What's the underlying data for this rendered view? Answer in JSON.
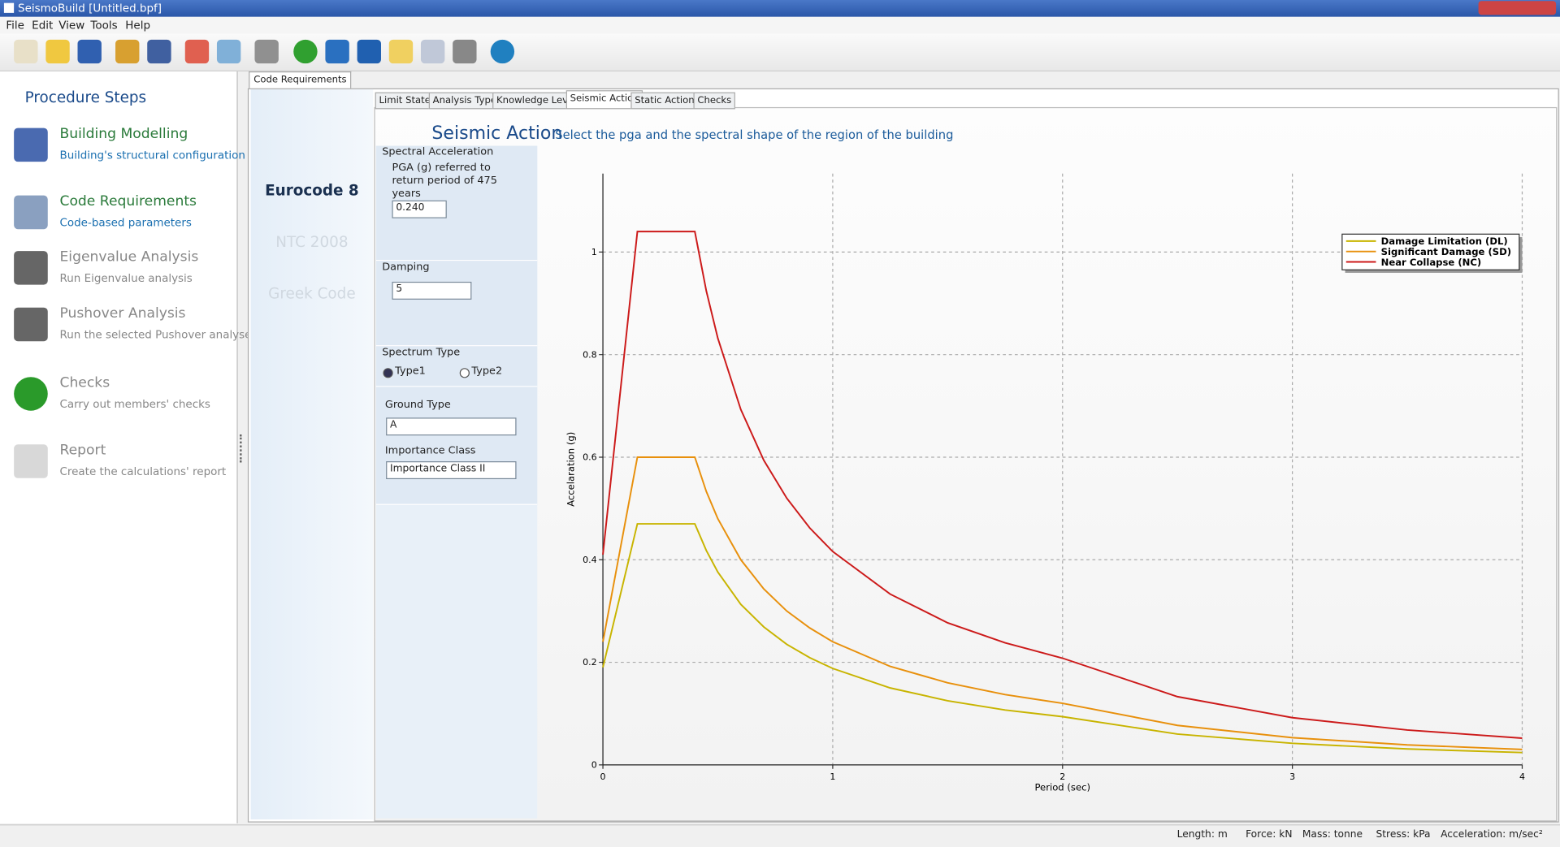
{
  "window": {
    "title": "SeismoBuild  [Untitled.bpf]"
  },
  "menu": [
    "File",
    "Edit",
    "View",
    "Tools",
    "Help"
  ],
  "sidebar": {
    "title": "Procedure Steps",
    "steps": [
      {
        "label": "Building Modelling",
        "description": "Building's structural configuration"
      },
      {
        "label": "Code Requirements",
        "description": "Code-based parameters"
      },
      {
        "label": "Eigenvalue Analysis",
        "description": "Run Eigenvalue analysis"
      },
      {
        "label": "Pushover Analysis",
        "description": "Run the selected Pushover analyses"
      },
      {
        "label": "Checks",
        "description": "Carry out members' checks"
      },
      {
        "label": "Report",
        "description": "Create the calculations' report"
      }
    ]
  },
  "main_tab": "Code Requirements",
  "codes": [
    "Eurocode 8",
    "NTC 2008",
    "Greek Code"
  ],
  "sub_tabs": [
    "Limit States",
    "Analysis Type",
    "Knowledge Level",
    "Seismic Action",
    "Static Actions",
    "Checks"
  ],
  "panel": {
    "title": "Seismic Action",
    "subtitle": "Select the pga and the spectral shape of the region of the building",
    "spectral_acceleration": {
      "label": "Spectral Acceleration",
      "text": "PGA (g) referred to return period of 475 years",
      "value": "0.240"
    },
    "damping": {
      "label": "Damping",
      "value": "5"
    },
    "spectrum_type": {
      "label": "Spectrum Type",
      "options": [
        "Type1",
        "Type2"
      ]
    },
    "ground_type": {
      "label": "Ground Type",
      "value": "A"
    },
    "importance_class": {
      "label": "Importance Class",
      "value": "Importance Class II"
    }
  },
  "chart_data": {
    "type": "line",
    "x_label": "Period (sec)",
    "y_label": "Accelaration (g)",
    "x": [
      0,
      0.15,
      0.4,
      0.45,
      0.5,
      0.6,
      0.7,
      0.8,
      0.9,
      1,
      1.25,
      1.5,
      1.75,
      2,
      2.5,
      3,
      3.5,
      4
    ],
    "series": [
      {
        "name": "Damage Limitation (DL)",
        "color": "#c8b400",
        "values": [
          0.19,
          0.47,
          0.47,
          0.418,
          0.376,
          0.313,
          0.269,
          0.235,
          0.209,
          0.188,
          0.15,
          0.125,
          0.107,
          0.094,
          0.06,
          0.042,
          0.031,
          0.024
        ]
      },
      {
        "name": "Significant Damage (SD)",
        "color": "#e8900c",
        "values": [
          0.24,
          0.6,
          0.6,
          0.533,
          0.48,
          0.4,
          0.343,
          0.3,
          0.267,
          0.24,
          0.192,
          0.16,
          0.137,
          0.12,
          0.077,
          0.053,
          0.039,
          0.03
        ]
      },
      {
        "name": "Near Collapse (NC)",
        "color": "#cc1a1a",
        "values": [
          0.41,
          1.04,
          1.04,
          0.924,
          0.832,
          0.693,
          0.594,
          0.52,
          0.462,
          0.416,
          0.333,
          0.277,
          0.238,
          0.208,
          0.133,
          0.092,
          0.068,
          0.052
        ]
      }
    ],
    "xlim": [
      0,
      4
    ],
    "ylim": [
      0,
      1.153
    ],
    "xticks": [
      0,
      1,
      2,
      3,
      4
    ],
    "yticks": [
      0,
      0.2,
      0.4,
      0.6,
      0.8,
      1
    ],
    "grid": true,
    "legend": "upper right"
  },
  "status_bar": [
    "Length: m",
    "Force: kN",
    "Mass: tonne",
    "Stress: kPa",
    "Acceleration: m/sec²"
  ]
}
